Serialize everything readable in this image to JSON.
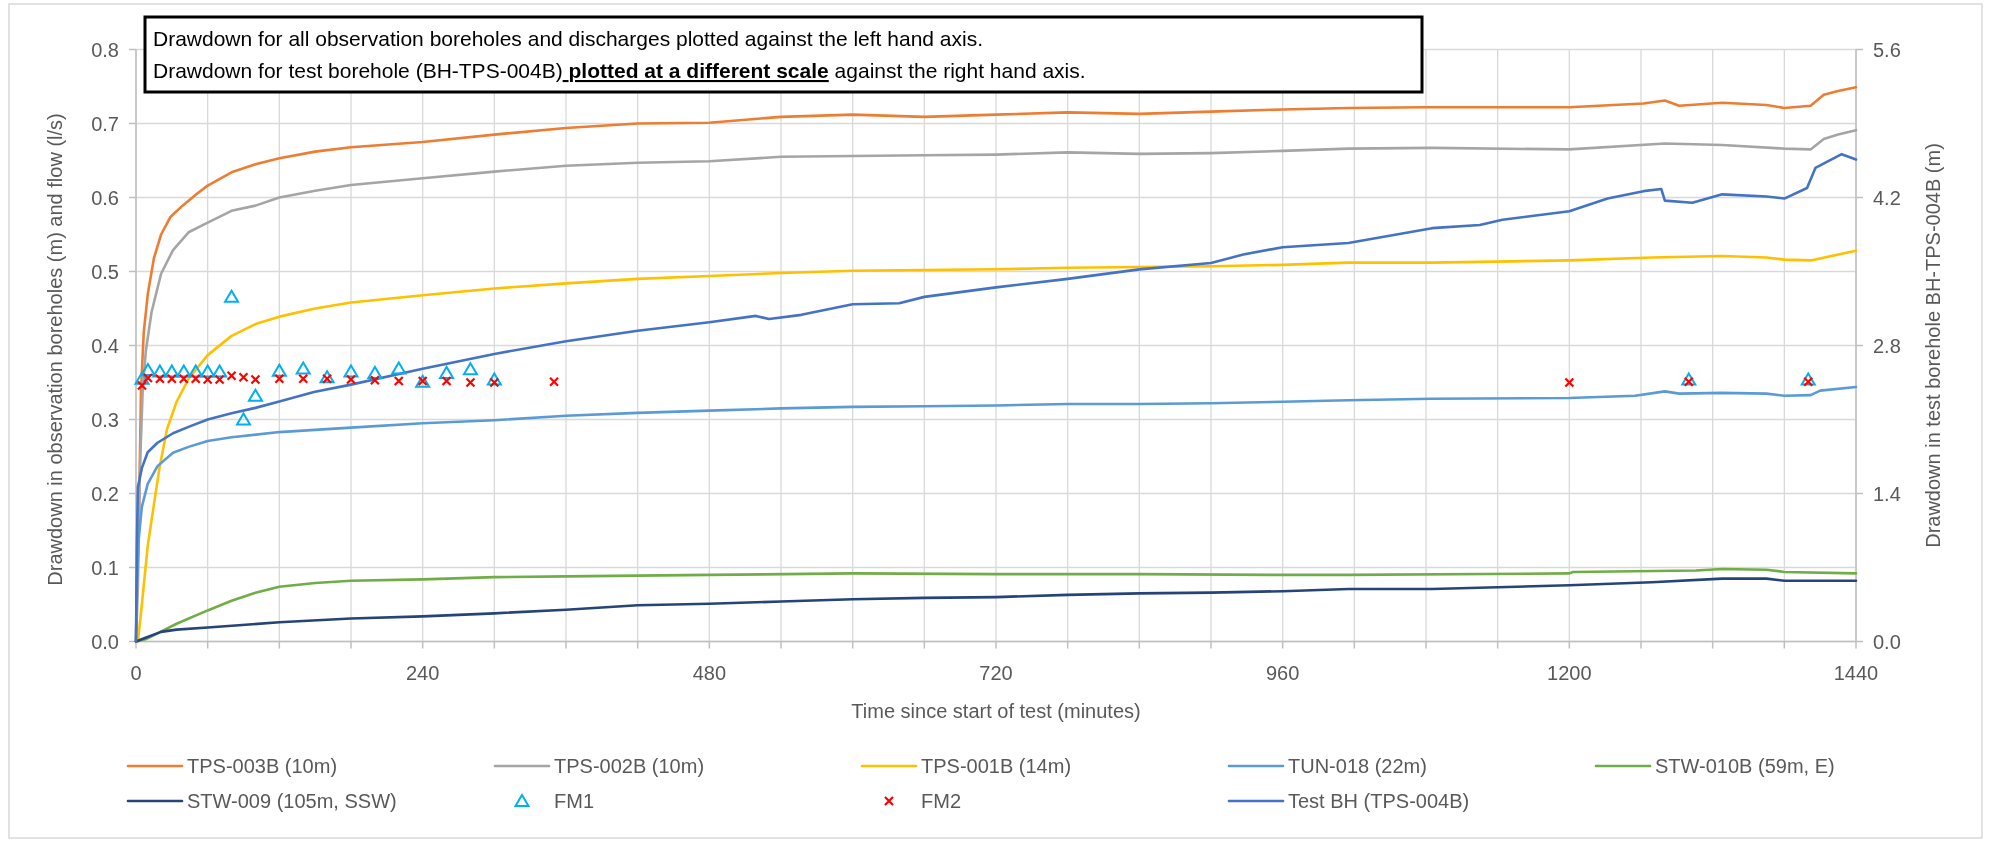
{
  "chart_data": {
    "type": "line",
    "annotations": [
      "Drawdown for all observation boreholes and discharges plotted against the left hand axis.",
      "Drawdown for test borehole (BH-TPS-004B)",
      "plotted at a different scale",
      "against the right hand axis."
    ],
    "xlabel": "Time since start of test (minutes)",
    "ylabel": "Drawdown in observation boreholes (m) and flow (l/s)",
    "y2label": "Drawdown in test borehole BH-TPS-004B (m)",
    "xlim": [
      0,
      1440
    ],
    "ylim": [
      0,
      0.8
    ],
    "y2lim": [
      0,
      5.6
    ],
    "xticks": [
      0,
      {
        "value": 60,
        "label": null
      },
      {
        "value": 120,
        "label": null
      },
      {
        "value": 180,
        "label": null
      },
      240,
      {
        "value": 300,
        "label": null
      },
      {
        "value": 360,
        "label": null
      },
      {
        "value": 420,
        "label": null
      },
      480,
      {
        "value": 540,
        "label": null
      },
      {
        "value": 600,
        "label": null
      },
      {
        "value": 660,
        "label": null
      },
      720,
      {
        "value": 780,
        "label": null
      },
      {
        "value": 840,
        "label": null
      },
      {
        "value": 900,
        "label": null
      },
      960,
      {
        "value": 1020,
        "label": null
      },
      {
        "value": 1080,
        "label": null
      },
      {
        "value": 1140,
        "label": null
      },
      1200,
      {
        "value": 1260,
        "label": null
      },
      {
        "value": 1320,
        "label": null
      },
      {
        "value": 1380,
        "label": null
      },
      1440
    ],
    "yticks": [
      {
        "value": 0,
        "label": "0.0"
      },
      0.1,
      0.2,
      0.3,
      0.4,
      0.5,
      0.6,
      0.7,
      0.8
    ],
    "y2ticks": [
      {
        "value": 0,
        "label": "0.0"
      },
      1.4,
      2.8,
      4.2,
      5.6
    ],
    "grid": true,
    "legend": "bottom",
    "series": [
      {
        "name": "TPS-003B (10m)",
        "color": "#ed7d31",
        "x": [
          0,
          1,
          2.6,
          4.2,
          6.5,
          10,
          15,
          21,
          29,
          39,
          51,
          60,
          80,
          100,
          120,
          150,
          180,
          240,
          300,
          360,
          420,
          480,
          540,
          600,
          660,
          720,
          780,
          840,
          900,
          960,
          1015,
          1080,
          1200,
          1262,
          1280,
          1292,
          1328,
          1365,
          1380,
          1402,
          1413,
          1425,
          1440
        ],
        "values": [
          0,
          0.09,
          0.18,
          0.34,
          0.418,
          0.471,
          0.518,
          0.55,
          0.574,
          0.589,
          0.605,
          0.616,
          0.634,
          0.645,
          0.653,
          0.662,
          0.668,
          0.675,
          0.685,
          0.694,
          0.7,
          0.701,
          0.709,
          0.712,
          0.709,
          0.712,
          0.715,
          0.713,
          0.716,
          0.719,
          0.721,
          0.722,
          0.722,
          0.727,
          0.731,
          0.724,
          0.728,
          0.725,
          0.721,
          0.724,
          0.739,
          0.744,
          0.749
        ]
      },
      {
        "name": "TPS-002B (10m)",
        "color": "#a5a5a5",
        "x": [
          0,
          1.6,
          3.3,
          5.6,
          8.2,
          13,
          21,
          31,
          44,
          60,
          80,
          100,
          120,
          150,
          180,
          240,
          300,
          360,
          420,
          480,
          540,
          600,
          660,
          720,
          780,
          840,
          900,
          960,
          1015,
          1085,
          1200,
          1280,
          1328,
          1380,
          1402,
          1413,
          1425,
          1440
        ],
        "values": [
          0,
          0.076,
          0.234,
          0.34,
          0.392,
          0.445,
          0.497,
          0.529,
          0.553,
          0.566,
          0.582,
          0.589,
          0.6,
          0.609,
          0.617,
          0.626,
          0.635,
          0.643,
          0.647,
          0.649,
          0.655,
          0.656,
          0.657,
          0.658,
          0.661,
          0.659,
          0.66,
          0.663,
          0.666,
          0.667,
          0.665,
          0.673,
          0.671,
          0.666,
          0.665,
          0.679,
          0.685,
          0.691
        ]
      },
      {
        "name": "TPS-001B (14m)",
        "color": "#ffc000",
        "x": [
          0,
          1.6,
          4.9,
          9.8,
          14.7,
          19.6,
          26,
          34,
          44,
          60,
          80,
          100,
          120,
          150,
          180,
          240,
          300,
          360,
          420,
          480,
          540,
          600,
          660,
          720,
          780,
          840,
          900,
          960,
          1015,
          1085,
          1200,
          1269,
          1328,
          1365,
          1380,
          1402,
          1440
        ],
        "values": [
          0,
          0,
          0.05,
          0.129,
          0.182,
          0.234,
          0.287,
          0.324,
          0.355,
          0.387,
          0.413,
          0.429,
          0.439,
          0.45,
          0.458,
          0.468,
          0.477,
          0.484,
          0.49,
          0.494,
          0.498,
          0.501,
          0.502,
          0.503,
          0.505,
          0.506,
          0.507,
          0.509,
          0.512,
          0.512,
          0.515,
          0.519,
          0.521,
          0.519,
          0.516,
          0.515,
          0.528
        ]
      },
      {
        "name": "TUN-018 (22m)",
        "color": "#5b9bd5",
        "x": [
          0,
          0.7,
          2.3,
          4.9,
          9.8,
          18,
          31,
          44,
          60,
          80,
          120,
          180,
          240,
          300,
          360,
          420,
          480,
          540,
          600,
          660,
          720,
          780,
          840,
          900,
          960,
          1015,
          1085,
          1200,
          1255,
          1280,
          1292,
          1328,
          1365,
          1380,
          1402,
          1410,
          1440
        ],
        "values": [
          0,
          0.076,
          0.139,
          0.182,
          0.213,
          0.237,
          0.255,
          0.263,
          0.271,
          0.276,
          0.283,
          0.289,
          0.295,
          0.299,
          0.305,
          0.309,
          0.312,
          0.315,
          0.317,
          0.318,
          0.319,
          0.321,
          0.321,
          0.322,
          0.324,
          0.326,
          0.328,
          0.329,
          0.332,
          0.338,
          0.335,
          0.336,
          0.335,
          0.332,
          0.333,
          0.339,
          0.344
        ]
      },
      {
        "name": "STW-010B (59m, E)",
        "color": "#70ad47",
        "x": [
          0,
          8,
          18,
          34,
          60,
          80,
          100,
          120,
          150,
          180,
          240,
          300,
          360,
          420,
          480,
          600,
          720,
          840,
          960,
          1015,
          1200,
          1203,
          1306,
          1328,
          1365,
          1380,
          1440
        ],
        "values": [
          0,
          0.003,
          0.011,
          0.024,
          0.042,
          0.055,
          0.066,
          0.074,
          0.079,
          0.082,
          0.084,
          0.087,
          0.088,
          0.089,
          0.09,
          0.092,
          0.091,
          0.091,
          0.09,
          0.09,
          0.092,
          0.094,
          0.096,
          0.098,
          0.097,
          0.094,
          0.092
        ]
      },
      {
        "name": "STW-009 (105m, SSW)",
        "color": "#264478",
        "x": [
          0,
          8,
          21,
          34,
          60,
          120,
          180,
          240,
          300,
          360,
          420,
          480,
          540,
          600,
          660,
          720,
          780,
          840,
          900,
          960,
          1015,
          1085,
          1200,
          1269,
          1328,
          1365,
          1380,
          1440
        ],
        "values": [
          0,
          0.005,
          0.013,
          0.016,
          0.019,
          0.026,
          0.031,
          0.034,
          0.038,
          0.043,
          0.049,
          0.051,
          0.054,
          0.057,
          0.059,
          0.06,
          0.063,
          0.065,
          0.066,
          0.068,
          0.071,
          0.071,
          0.076,
          0.08,
          0.085,
          0.085,
          0.082,
          0.082
        ]
      },
      {
        "name": "FM1",
        "color": "#00b0f0",
        "type": "scatter",
        "marker": "triangle",
        "x": [
          5,
          10,
          20,
          30,
          40,
          50,
          60,
          70,
          80,
          90,
          100,
          120,
          140,
          160,
          180,
          200,
          220,
          240,
          260,
          280,
          300,
          1300,
          1400
        ],
        "values": [
          0.355,
          0.367,
          0.365,
          0.365,
          0.365,
          0.365,
          0.365,
          0.365,
          0.466,
          0.3,
          0.332,
          0.366,
          0.369,
          0.357,
          0.365,
          0.363,
          0.369,
          0.351,
          0.363,
          0.368,
          0.354,
          0.354,
          0.354
        ]
      },
      {
        "name": "FM2",
        "color": "#ff0000",
        "type": "scatter",
        "marker": "cross",
        "x": [
          5,
          10,
          20,
          30,
          40,
          50,
          60,
          70,
          80,
          90,
          100,
          120,
          140,
          160,
          180,
          200,
          220,
          240,
          260,
          280,
          300,
          350,
          1200,
          1300,
          1400
        ],
        "values": [
          0.346,
          0.356,
          0.355,
          0.355,
          0.355,
          0.355,
          0.354,
          0.354,
          0.359,
          0.357,
          0.354,
          0.355,
          0.355,
          0.355,
          0.354,
          0.353,
          0.352,
          0.352,
          0.352,
          0.35,
          0.35,
          0.351,
          0.35,
          0.351,
          0.351
        ]
      },
      {
        "name": "Test BH (TPS-004B)",
        "color": "#4472c4",
        "axis": "y2",
        "x": [
          0,
          0.7,
          1.6,
          4.9,
          9.8,
          18,
          31,
          44,
          60,
          80,
          100,
          120,
          149,
          180,
          240,
          300,
          360,
          420,
          480,
          519,
          530,
          557,
          600,
          639,
          660,
          720,
          780,
          840,
          900,
          927,
          960,
          1015,
          1085,
          1125,
          1144,
          1200,
          1232,
          1262,
          1277,
          1280,
          1303,
          1328,
          1365,
          1380,
          1399,
          1406,
          1428,
          1440
        ],
        "values": [
          0,
          0.9,
          1.46,
          1.64,
          1.79,
          1.88,
          1.97,
          2.03,
          2.1,
          2.16,
          2.21,
          2.27,
          2.36,
          2.43,
          2.58,
          2.72,
          2.84,
          2.94,
          3.02,
          3.08,
          3.05,
          3.09,
          3.19,
          3.2,
          3.26,
          3.35,
          3.43,
          3.52,
          3.58,
          3.66,
          3.73,
          3.77,
          3.91,
          3.94,
          3.99,
          4.07,
          4.19,
          4.26,
          4.28,
          4.17,
          4.15,
          4.23,
          4.21,
          4.19,
          4.29,
          4.48,
          4.61,
          4.56
        ]
      }
    ]
  }
}
